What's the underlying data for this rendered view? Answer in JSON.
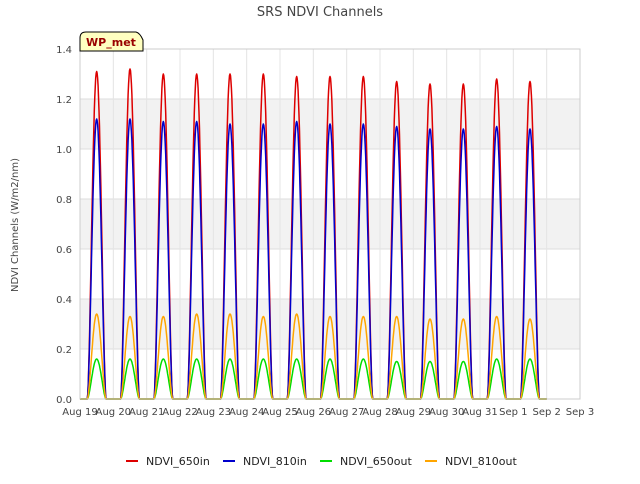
{
  "chart_data": {
    "type": "line",
    "title": "SRS NDVI Channels",
    "ylabel": "NDVI Channels (W/m2/nm)",
    "xlabel": "",
    "site_tag": "WP_met",
    "ylim": [
      0,
      1.4
    ],
    "yticks": [
      0.0,
      0.2,
      0.4,
      0.6,
      0.8,
      1.0,
      1.2,
      1.4
    ],
    "ytick_labels": [
      "0.0",
      "0.2",
      "0.4",
      "0.6",
      "0.8",
      "1.0",
      "1.2",
      "1.4"
    ],
    "xticks": [
      "Aug 19",
      "Aug 20",
      "Aug 21",
      "Aug 22",
      "Aug 23",
      "Aug 24",
      "Aug 25",
      "Aug 26",
      "Aug 27",
      "Aug 28",
      "Aug 29",
      "Aug 30",
      "Aug 31",
      "Sep 1",
      "Sep 2",
      "Sep 3"
    ],
    "grid": true,
    "legend_position": "bottom",
    "series": [
      {
        "name": "NDVI_650in",
        "color": "#dd0000",
        "peak_day_offsets": [
          0.5,
          1.5,
          2.5,
          3.5,
          4.5,
          5.5,
          6.5,
          7.5,
          8.5,
          9.5,
          10.5,
          11.5,
          12.5,
          13.5
        ],
        "daily_peaks": [
          1.31,
          1.32,
          1.3,
          1.3,
          1.3,
          1.3,
          1.29,
          1.29,
          1.29,
          1.27,
          1.26,
          1.26,
          1.28,
          1.27
        ]
      },
      {
        "name": "NDVI_810in",
        "color": "#0000cc",
        "peak_day_offsets": [
          0.5,
          1.5,
          2.5,
          3.5,
          4.5,
          5.5,
          6.5,
          7.5,
          8.5,
          9.5,
          10.5,
          11.5,
          12.5,
          13.5
        ],
        "daily_peaks": [
          1.12,
          1.12,
          1.11,
          1.11,
          1.1,
          1.1,
          1.11,
          1.1,
          1.1,
          1.09,
          1.08,
          1.08,
          1.09,
          1.08
        ]
      },
      {
        "name": "NDVI_650out",
        "color": "#00dd00",
        "peak_day_offsets": [
          0.5,
          1.5,
          2.5,
          3.5,
          4.5,
          5.5,
          6.5,
          7.5,
          8.5,
          9.5,
          10.5,
          11.5,
          12.5,
          13.5
        ],
        "daily_peaks": [
          0.16,
          0.16,
          0.16,
          0.16,
          0.16,
          0.16,
          0.16,
          0.16,
          0.16,
          0.15,
          0.15,
          0.15,
          0.16,
          0.16
        ]
      },
      {
        "name": "NDVI_810out",
        "color": "#ffa500",
        "peak_day_offsets": [
          0.5,
          1.5,
          2.5,
          3.5,
          4.5,
          5.5,
          6.5,
          7.5,
          8.5,
          9.5,
          10.5,
          11.5,
          12.5,
          13.5
        ],
        "daily_peaks": [
          0.34,
          0.33,
          0.33,
          0.34,
          0.34,
          0.33,
          0.34,
          0.33,
          0.33,
          0.33,
          0.32,
          0.32,
          0.33,
          0.32
        ]
      }
    ]
  }
}
